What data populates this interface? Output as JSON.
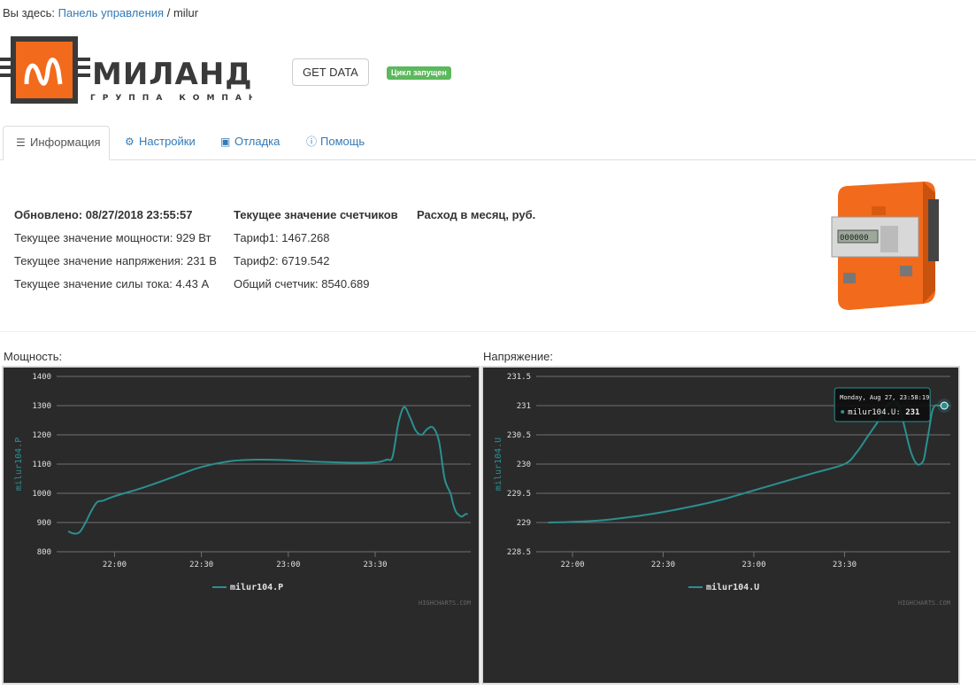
{
  "breadcrumb": {
    "prefix": "Вы здесь:",
    "link": "Панель управления",
    "sep": "/",
    "current": "milur"
  },
  "logo": {
    "name": "МИЛАНДР",
    "tagline": "ГРУППА КОМПАНИЙ"
  },
  "actions": {
    "get_data": "GET DATA",
    "status_badge": "Цикл запущен"
  },
  "tabs": [
    {
      "label": "Информация",
      "icon": "list-icon",
      "active": true
    },
    {
      "label": "Настройки",
      "icon": "gear-icon",
      "active": false
    },
    {
      "label": "Отладка",
      "icon": "inbox-icon",
      "active": false
    },
    {
      "label": "Помощь",
      "icon": "info-icon",
      "active": false
    }
  ],
  "info": {
    "col1": {
      "updated": "Обновлено: 08/27/2018 23:55:57",
      "power": "Текущее значение мощности: 929 Вт",
      "voltage": "Текущее значение напряжения: 231 В",
      "current": "Текущее значение силы тока: 4.43 А"
    },
    "col2": {
      "title": "Текущее значение счетчиков",
      "t1": "Тариф1: 1467.268",
      "t2": "Тариф2: 6719.542",
      "total": "Общий счетчик: 8540.689"
    },
    "col3": {
      "title": "Расход в месяц, руб."
    }
  },
  "colors": {
    "series": "#2b908f",
    "chart_bg": "#2a2a2b",
    "meter_orange": "#f26a1b",
    "link": "#337ab7",
    "badge": "#5cb85c"
  },
  "panels": {
    "power_label": "Мощность:",
    "voltage_label": "Напряжение:"
  },
  "chart_data": [
    {
      "type": "line",
      "ylabel": "milur104.P",
      "ylim": [
        800,
        1400
      ],
      "yticks": [
        "1400",
        "1300",
        "1200",
        "1100",
        "1000",
        "900",
        "800"
      ],
      "xticks": [
        "22:00",
        "22:30",
        "23:00",
        "23:30"
      ],
      "xtick_minutes": [
        120,
        150,
        180,
        210
      ],
      "xlim_minutes": [
        100,
        243
      ],
      "grid": true,
      "legend_position": "bottom-center",
      "credit": "HIGHCHARTS.COM",
      "series": [
        {
          "name": "milur104.P",
          "x_minutes": [
            104,
            106,
            108,
            110,
            112,
            114,
            116,
            120,
            130,
            140,
            150,
            160,
            170,
            180,
            190,
            200,
            210,
            214,
            216,
            218,
            220,
            222,
            224,
            226,
            228,
            230,
            232,
            234,
            236,
            237,
            238,
            239,
            240,
            241,
            242
          ],
          "values": [
            870,
            862,
            868,
            900,
            940,
            970,
            975,
            990,
            1020,
            1055,
            1090,
            1110,
            1115,
            1113,
            1108,
            1105,
            1106,
            1115,
            1125,
            1240,
            1295,
            1260,
            1215,
            1200,
            1220,
            1225,
            1180,
            1050,
            1000,
            960,
            935,
            925,
            920,
            928,
            929
          ]
        }
      ]
    },
    {
      "type": "line",
      "ylabel": "milur104.U",
      "ylim": [
        228.5,
        231.5
      ],
      "yticks": [
        "231.5",
        "231",
        "230.5",
        "230",
        "229.5",
        "229",
        "228.5"
      ],
      "xticks": [
        "22:00",
        "22:30",
        "23:00",
        "23:30"
      ],
      "xtick_minutes": [
        120,
        150,
        180,
        210
      ],
      "xlim_minutes": [
        108,
        245
      ],
      "grid": true,
      "legend_position": "bottom-center",
      "credit": "HIGHCHARTS.COM",
      "tooltip": {
        "title": "Monday, Aug 27, 23:58:19",
        "series": "milur104.U:",
        "value": "231"
      },
      "series": [
        {
          "name": "milur104.U",
          "x_minutes": [
            112,
            120,
            130,
            140,
            150,
            160,
            170,
            180,
            190,
            200,
            210,
            214,
            218,
            222,
            224,
            226,
            228,
            230,
            232,
            234,
            236,
            237,
            238,
            239,
            240,
            241,
            242,
            243
          ],
          "values": [
            229,
            229.01,
            229.04,
            229.1,
            229.18,
            229.28,
            229.4,
            229.55,
            229.7,
            229.85,
            230,
            230.2,
            230.5,
            230.8,
            231,
            231.05,
            231,
            230.6,
            230.2,
            230,
            230.05,
            230.3,
            230.6,
            230.9,
            231,
            231,
            231,
            231
          ]
        }
      ]
    }
  ]
}
